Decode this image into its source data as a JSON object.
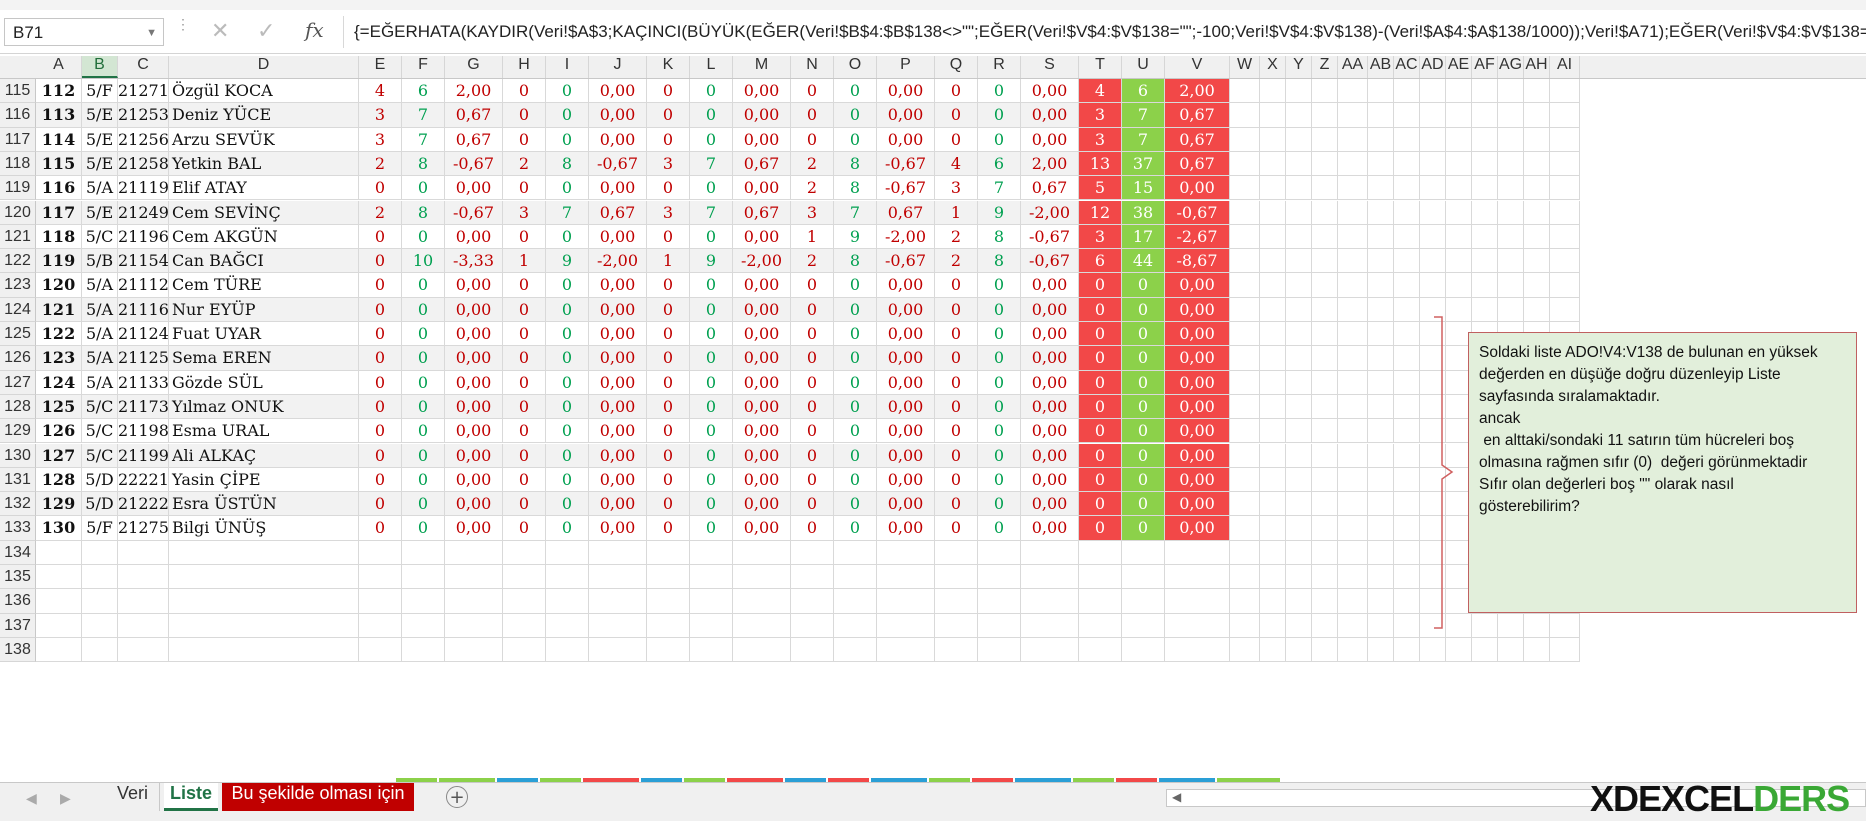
{
  "namebox": {
    "value": "B71"
  },
  "formula": {
    "text": "{=EĞERHATA(KAYDIR(Veri!$A$3;KAÇINCI(BÜYÜK(EĞER(Veri!$B$4:$B$138<>\"\";EĞER(Veri!$V$4:$V$138=\"\";-100;Veri!$V$4:$V$138)-(Veri!$A$4:$A$138/1000));Veri!$A71);EĞER(Veri!$V$4:$V$138=\"\";-100;"
  },
  "columns": [
    "A",
    "B",
    "C",
    "D",
    "E",
    "F",
    "G",
    "H",
    "I",
    "J",
    "K",
    "L",
    "M",
    "N",
    "O",
    "P",
    "Q",
    "R",
    "S",
    "T",
    "U",
    "V",
    "W",
    "X",
    "Y",
    "Z",
    "AA",
    "AB",
    "AC",
    "AD",
    "AE",
    "AF",
    "AG",
    "AH",
    "AI"
  ],
  "selected_column": "B",
  "rows": [
    {
      "n": "115",
      "a": "112",
      "b": "5/F",
      "c": "21271",
      "d": "Özgül KOCA",
      "v": [
        "4",
        "6",
        "2,00",
        "0",
        "0",
        "0,00",
        "0",
        "0",
        "0,00",
        "0",
        "0",
        "0,00",
        "0",
        "0",
        "0,00",
        "4",
        "6",
        "2,00"
      ]
    },
    {
      "n": "116",
      "a": "113",
      "b": "5/E",
      "c": "21253",
      "d": "Deniz YÜCE",
      "v": [
        "3",
        "7",
        "0,67",
        "0",
        "0",
        "0,00",
        "0",
        "0",
        "0,00",
        "0",
        "0",
        "0,00",
        "0",
        "0",
        "0,00",
        "3",
        "7",
        "0,67"
      ]
    },
    {
      "n": "117",
      "a": "114",
      "b": "5/E",
      "c": "21256",
      "d": "Arzu SEVÜK",
      "v": [
        "3",
        "7",
        "0,67",
        "0",
        "0",
        "0,00",
        "0",
        "0",
        "0,00",
        "0",
        "0",
        "0,00",
        "0",
        "0",
        "0,00",
        "3",
        "7",
        "0,67"
      ]
    },
    {
      "n": "118",
      "a": "115",
      "b": "5/E",
      "c": "21258",
      "d": "Yetkin BAL",
      "v": [
        "2",
        "8",
        "-0,67",
        "2",
        "8",
        "-0,67",
        "3",
        "7",
        "0,67",
        "2",
        "8",
        "-0,67",
        "4",
        "6",
        "2,00",
        "13",
        "37",
        "0,67"
      ]
    },
    {
      "n": "119",
      "a": "116",
      "b": "5/A",
      "c": "21119",
      "d": "Elif ATAY",
      "v": [
        "0",
        "0",
        "0,00",
        "0",
        "0",
        "0,00",
        "0",
        "0",
        "0,00",
        "2",
        "8",
        "-0,67",
        "3",
        "7",
        "0,67",
        "5",
        "15",
        "0,00"
      ]
    },
    {
      "n": "120",
      "a": "117",
      "b": "5/E",
      "c": "21249",
      "d": "Cem SEVİNÇ",
      "v": [
        "2",
        "8",
        "-0,67",
        "3",
        "7",
        "0,67",
        "3",
        "7",
        "0,67",
        "3",
        "7",
        "0,67",
        "1",
        "9",
        "-2,00",
        "12",
        "38",
        "-0,67"
      ]
    },
    {
      "n": "121",
      "a": "118",
      "b": "5/C",
      "c": "21196",
      "d": "Cem AKGÜN",
      "v": [
        "0",
        "0",
        "0,00",
        "0",
        "0",
        "0,00",
        "0",
        "0",
        "0,00",
        "1",
        "9",
        "-2,00",
        "2",
        "8",
        "-0,67",
        "3",
        "17",
        "-2,67"
      ]
    },
    {
      "n": "122",
      "a": "119",
      "b": "5/B",
      "c": "21154",
      "d": "Can BAĞCI",
      "v": [
        "0",
        "10",
        "-3,33",
        "1",
        "9",
        "-2,00",
        "1",
        "9",
        "-2,00",
        "2",
        "8",
        "-0,67",
        "2",
        "8",
        "-0,67",
        "6",
        "44",
        "-8,67"
      ]
    },
    {
      "n": "123",
      "a": "120",
      "b": "5/A",
      "c": "21112",
      "d": "Cem TÜRE",
      "v": [
        "0",
        "0",
        "0,00",
        "0",
        "0",
        "0,00",
        "0",
        "0",
        "0,00",
        "0",
        "0",
        "0,00",
        "0",
        "0",
        "0,00",
        "0",
        "0",
        "0,00"
      ]
    },
    {
      "n": "124",
      "a": "121",
      "b": "5/A",
      "c": "21116",
      "d": "Nur EYÜP",
      "v": [
        "0",
        "0",
        "0,00",
        "0",
        "0",
        "0,00",
        "0",
        "0",
        "0,00",
        "0",
        "0",
        "0,00",
        "0",
        "0",
        "0,00",
        "0",
        "0",
        "0,00"
      ]
    },
    {
      "n": "125",
      "a": "122",
      "b": "5/A",
      "c": "21124",
      "d": "Fuat UYAR",
      "v": [
        "0",
        "0",
        "0,00",
        "0",
        "0",
        "0,00",
        "0",
        "0",
        "0,00",
        "0",
        "0",
        "0,00",
        "0",
        "0",
        "0,00",
        "0",
        "0",
        "0,00"
      ]
    },
    {
      "n": "126",
      "a": "123",
      "b": "5/A",
      "c": "21125",
      "d": "Sema EREN",
      "v": [
        "0",
        "0",
        "0,00",
        "0",
        "0",
        "0,00",
        "0",
        "0",
        "0,00",
        "0",
        "0",
        "0,00",
        "0",
        "0",
        "0,00",
        "0",
        "0",
        "0,00"
      ]
    },
    {
      "n": "127",
      "a": "124",
      "b": "5/A",
      "c": "21133",
      "d": "Gözde SÜL",
      "v": [
        "0",
        "0",
        "0,00",
        "0",
        "0",
        "0,00",
        "0",
        "0",
        "0,00",
        "0",
        "0",
        "0,00",
        "0",
        "0",
        "0,00",
        "0",
        "0",
        "0,00"
      ]
    },
    {
      "n": "128",
      "a": "125",
      "b": "5/C",
      "c": "21173",
      "d": "Yılmaz ONUK",
      "v": [
        "0",
        "0",
        "0,00",
        "0",
        "0",
        "0,00",
        "0",
        "0",
        "0,00",
        "0",
        "0",
        "0,00",
        "0",
        "0",
        "0,00",
        "0",
        "0",
        "0,00"
      ]
    },
    {
      "n": "129",
      "a": "126",
      "b": "5/C",
      "c": "21198",
      "d": "Esma URAL",
      "v": [
        "0",
        "0",
        "0,00",
        "0",
        "0",
        "0,00",
        "0",
        "0",
        "0,00",
        "0",
        "0",
        "0,00",
        "0",
        "0",
        "0,00",
        "0",
        "0",
        "0,00"
      ]
    },
    {
      "n": "130",
      "a": "127",
      "b": "5/C",
      "c": "21199",
      "d": "Ali ALKAÇ",
      "v": [
        "0",
        "0",
        "0,00",
        "0",
        "0",
        "0,00",
        "0",
        "0",
        "0,00",
        "0",
        "0",
        "0,00",
        "0",
        "0",
        "0,00",
        "0",
        "0",
        "0,00"
      ]
    },
    {
      "n": "131",
      "a": "128",
      "b": "5/D",
      "c": "22221",
      "d": "Yasin ÇİPE",
      "v": [
        "0",
        "0",
        "0,00",
        "0",
        "0",
        "0,00",
        "0",
        "0",
        "0,00",
        "0",
        "0",
        "0,00",
        "0",
        "0",
        "0,00",
        "0",
        "0",
        "0,00"
      ]
    },
    {
      "n": "132",
      "a": "129",
      "b": "5/D",
      "c": "21222",
      "d": "Esra ÜSTÜN",
      "v": [
        "0",
        "0",
        "0,00",
        "0",
        "0",
        "0,00",
        "0",
        "0",
        "0,00",
        "0",
        "0",
        "0,00",
        "0",
        "0",
        "0,00",
        "0",
        "0",
        "0,00"
      ]
    },
    {
      "n": "133",
      "a": "130",
      "b": "5/F",
      "c": "21275",
      "d": "Bilgi ÜNÜŞ",
      "v": [
        "0",
        "0",
        "0,00",
        "0",
        "0",
        "0,00",
        "0",
        "0",
        "0,00",
        "0",
        "0",
        "0,00",
        "0",
        "0",
        "0,00",
        "0",
        "0",
        "0,00"
      ]
    }
  ],
  "empty_rows": [
    "134",
    "135",
    "136",
    "137",
    "138"
  ],
  "note": {
    "lines": [
      "Soldaki liste ADO!V4:V138 de bulunan en yüksek",
      "değerden en düşüğe doğru düzenleyip Liste",
      "sayfasında sıralamaktadır.",
      "ancak",
      " en alttaki/sondaki 11 satırın tüm hücreleri boş",
      "olmasına rağmen sıfır (0)  değeri görünmektadir",
      "Sıfır olan değerleri boş \"\" olarak nasıl",
      "gösterebilirim?"
    ]
  },
  "tabs": {
    "veri": "Veri",
    "liste": "Liste",
    "bu": "Bu şekilde olması için"
  },
  "watermark": {
    "text": "XDEXCELDERS"
  },
  "colors": {
    "red_fill": "#f24848",
    "green_fill": "#8cd14a",
    "red_text": "#c00000",
    "green_text": "#00a050",
    "note_bg": "#e2efdb",
    "accent": "#217346"
  }
}
